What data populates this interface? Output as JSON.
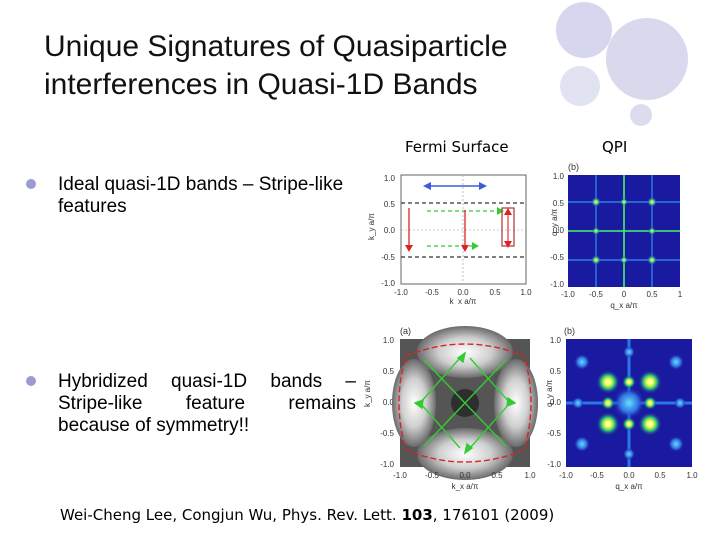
{
  "title": {
    "line1": "Unique Signatures of Quasiparticle",
    "line2": "interferences in Quasi-1D Bands"
  },
  "headers": {
    "fermi": "Fermi Surface",
    "qpi": "QPI"
  },
  "bullets": [
    {
      "text": "Ideal quasi-1D bands – Stripe-like features"
    },
    {
      "text": "Hybridized quasi-1D bands – Stripe-like feature remains because of symmetry!!"
    }
  ],
  "figures": {
    "top_right_panel_label": "(b)",
    "bottom_left_panel_label": "(a)",
    "bottom_right_panel_label": "(b)",
    "fermi_ylabel": "k_y a/π",
    "fermi_xlabel": "k_x a/π",
    "qpi_ylabel": "q_y a/π",
    "qpi_xlabel": "q_x a/π",
    "ticks_pos": [
      "1.0",
      "0.5",
      "0.0",
      "-0.5",
      "-1.0"
    ],
    "ticks_x": [
      "-1.0",
      "-0.5",
      "0.0",
      "0.5",
      "1.0"
    ],
    "qpi_ticks_x": [
      "-1.0",
      "-0.5",
      "0",
      "0.5",
      "1"
    ],
    "qpi_ticks_y": [
      "1",
      "0.5",
      "0",
      "-0.5",
      "-1"
    ]
  },
  "citation": {
    "prefix": "Wei-Cheng Lee, Congjun Wu, Phys. Rev. Lett. ",
    "volume": "103",
    "suffix": ", 176101 (2009)"
  },
  "colors": {
    "accent": "#c9cae8",
    "bullet": "#9b9bd2",
    "arrow_blue": "#3b5bdb",
    "arrow_green": "#33cc33",
    "arrow_red": "#dd2222",
    "qpi_background": "#1a1aa0"
  }
}
